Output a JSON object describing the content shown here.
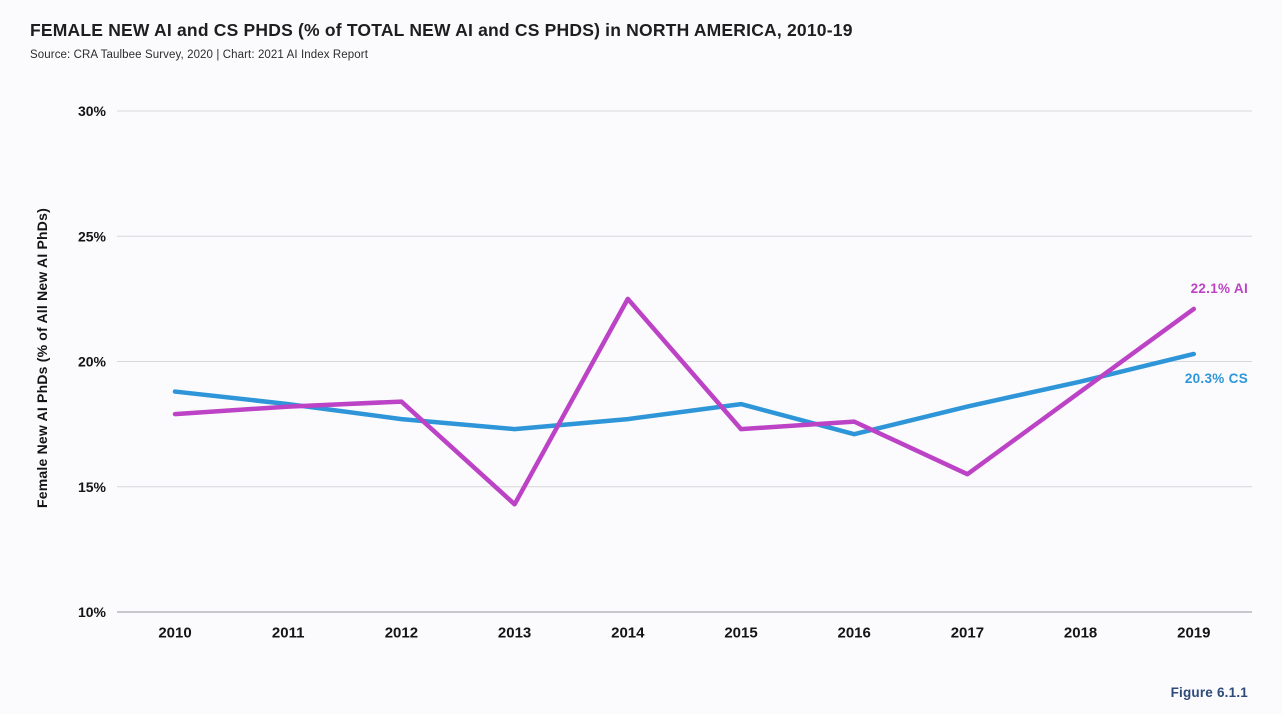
{
  "header": {
    "title": "FEMALE NEW AI and CS PHDS (% of TOTAL NEW AI and CS PHDS) in NORTH AMERICA, 2010-19",
    "source": "Source: CRA Taulbee Survey, 2020 | Chart: 2021 AI Index Report"
  },
  "footer": {
    "figure_label": "Figure 6.1.1",
    "figure_label_color": "#2d4a78"
  },
  "chart_data": {
    "type": "line",
    "title": "FEMALE NEW AI and CS PHDS (% of TOTAL NEW AI and CS PHDS) in NORTH AMERICA, 2010-19",
    "xlabel": "",
    "ylabel": "Female New AI PhDs (% of All New AI PhDs)",
    "x": [
      2010,
      2011,
      2012,
      2013,
      2014,
      2015,
      2016,
      2017,
      2018,
      2019
    ],
    "ylim": [
      10,
      30
    ],
    "y_tick_values": [
      30,
      25,
      20,
      15,
      10
    ],
    "y_tick_labels": [
      "30%",
      "25%",
      "20%",
      "15%",
      "10%"
    ],
    "grid": "horizontal",
    "legend": "inline-end-labels",
    "series": [
      {
        "name": "AI",
        "color": "#bc43c6",
        "end_label": "22.1% AI",
        "end_value": 22.1,
        "values": [
          17.9,
          18.2,
          18.4,
          14.3,
          22.5,
          17.3,
          17.6,
          15.5,
          18.8,
          22.1
        ]
      },
      {
        "name": "CS",
        "color": "#2e96d8",
        "end_label": "20.3% CS",
        "end_value": 20.3,
        "values": [
          18.8,
          18.3,
          17.7,
          17.3,
          17.7,
          18.3,
          17.1,
          18.2,
          19.2,
          20.3
        ]
      }
    ]
  }
}
